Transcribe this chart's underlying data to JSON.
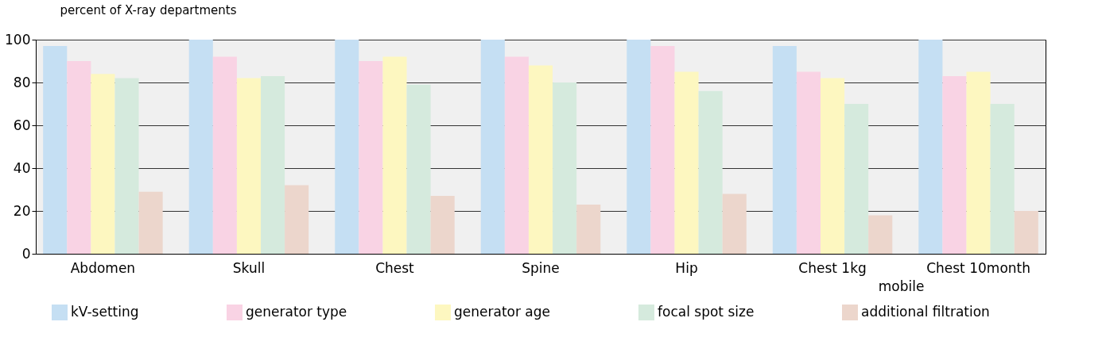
{
  "chart_data": {
    "type": "bar",
    "ylabel": "percent of X-ray departments",
    "categories": [
      "Abdomen",
      "Skull",
      "Chest",
      "Spine",
      "Hip",
      "Chest 1kg",
      "Chest 10month"
    ],
    "series": [
      {
        "name": "kV-setting",
        "color": "#c5dff3",
        "values": [
          97,
          100,
          100,
          100,
          100,
          97,
          100
        ]
      },
      {
        "name": "generator type",
        "color": "#f9d3e4",
        "values": [
          90,
          92,
          90,
          92,
          97,
          85,
          83
        ]
      },
      {
        "name": "generator age",
        "color": "#fdf7c0",
        "values": [
          84,
          82,
          92,
          88,
          85,
          82,
          85
        ]
      },
      {
        "name": "focal spot size",
        "color": "#d5eadd",
        "values": [
          82,
          83,
          79,
          80,
          76,
          70,
          70
        ]
      },
      {
        "name": "additional filtration",
        "color": "#ecd6cc",
        "values": [
          29,
          32,
          27,
          23,
          28,
          18,
          20
        ]
      }
    ],
    "ylim": [
      0,
      100
    ],
    "yticks": [
      0,
      20,
      40,
      60,
      80,
      100
    ],
    "grid": "y",
    "legend": "bottom",
    "annotations": [
      "mobile"
    ]
  }
}
